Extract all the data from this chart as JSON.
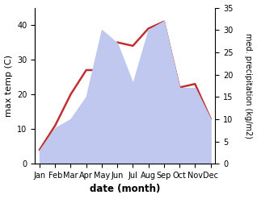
{
  "months": [
    "Jan",
    "Feb",
    "Mar",
    "Apr",
    "May",
    "Jun",
    "Jul",
    "Aug",
    "Sep",
    "Oct",
    "Nov",
    "Dec"
  ],
  "temp": [
    4,
    11,
    20,
    27,
    27,
    35,
    34,
    39,
    41,
    22,
    23,
    13
  ],
  "precip": [
    3,
    8,
    10,
    15,
    30,
    27,
    18,
    30,
    32,
    17,
    17,
    10
  ],
  "temp_color": "#c03030",
  "precip_fill_color": "#c0c8f0",
  "temp_ylim": [
    0,
    45
  ],
  "precip_ylim": [
    0,
    35
  ],
  "temp_yticks": [
    0,
    10,
    20,
    30,
    40
  ],
  "precip_yticks": [
    0,
    5,
    10,
    15,
    20,
    25,
    30,
    35
  ],
  "ylabel_left": "max temp (C)",
  "ylabel_right": "med. precipitation (kg/m2)",
  "xlabel": "date (month)",
  "bg_color": "#ffffff",
  "plot_bg_color": "#ffffff",
  "linewidth": 1.8
}
